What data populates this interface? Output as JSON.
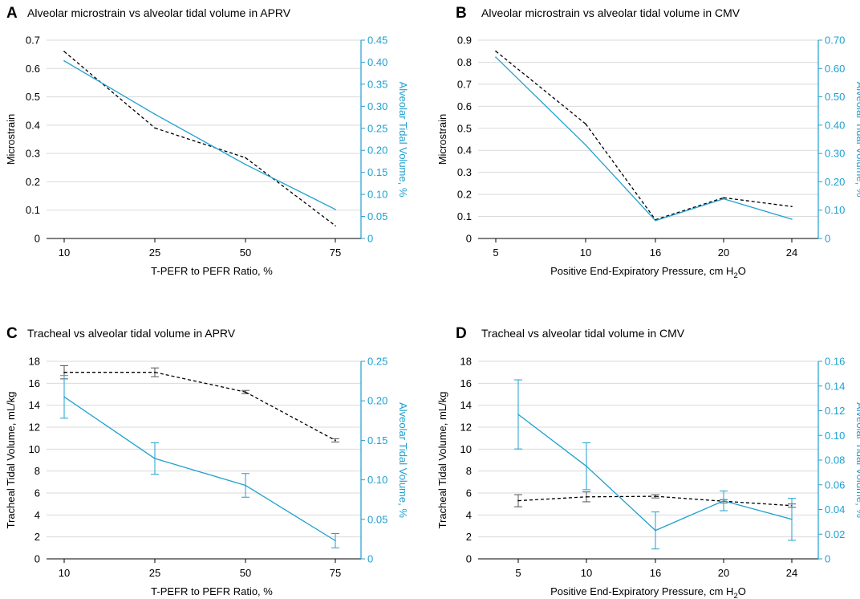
{
  "colors": {
    "primary": "#000000",
    "secondary": "#1fa0cf",
    "grid": "#dadada",
    "errorbar_black": "#555555"
  },
  "chart_data": [
    {
      "letter": "A",
      "title": "Alveolar microstrain vs alveolar tidal volume in APRV",
      "type": "line",
      "categories": [
        "10",
        "25",
        "50",
        "75"
      ],
      "xlabel": {
        "text": "T-PEFR to PEFR Ratio, %"
      },
      "ylabel": "Microstrain",
      "y2label": "Alveolar Tidal Volume, %",
      "ylim": [
        0,
        0.7
      ],
      "yticks": [
        "0",
        "0.1",
        "0.2",
        "0.3",
        "0.4",
        "0.5",
        "0.6",
        "0.7"
      ],
      "y2lim": [
        0,
        0.45
      ],
      "y2ticks": [
        "0",
        "0.05",
        "0.10",
        "0.15",
        "0.20",
        "0.25",
        "0.30",
        "0.35",
        "0.40",
        "0.45"
      ],
      "series": [
        {
          "name": "Microstrain",
          "axis": "left",
          "style": "dashed",
          "values": [
            0.66,
            0.39,
            0.285,
            0.045
          ]
        },
        {
          "name": "Alveolar Tidal Volume",
          "axis": "right",
          "style": "solid",
          "values": [
            0.403,
            0.282,
            0.168,
            0.066
          ]
        }
      ]
    },
    {
      "letter": "B",
      "title": "Alveolar microstrain vs alveolar tidal volume in CMV",
      "type": "line",
      "categories": [
        "5",
        "10",
        "16",
        "20",
        "24"
      ],
      "xlabel": {
        "text": "Positive End-Expiratory Pressure, cm H",
        "sub": "2",
        "tail": "O"
      },
      "ylabel": "Microstrain",
      "y2label": "Alveolar Tidal Volume, %",
      "ylim": [
        0,
        0.9
      ],
      "yticks": [
        "0",
        "0.1",
        "0.2",
        "0.3",
        "0.4",
        "0.5",
        "0.6",
        "0.7",
        "0.8",
        "0.9"
      ],
      "y2lim": [
        0,
        0.7
      ],
      "y2ticks": [
        "0",
        "0.10",
        "0.20",
        "0.30",
        "0.40",
        "0.50",
        "0.60",
        "0.70"
      ],
      "series": [
        {
          "name": "Microstrain",
          "axis": "left",
          "style": "dashed",
          "values": [
            0.85,
            0.52,
            0.085,
            0.185,
            0.145
          ]
        },
        {
          "name": "Alveolar Tidal Volume",
          "axis": "right",
          "style": "solid",
          "values": [
            0.64,
            0.33,
            0.063,
            0.14,
            0.068
          ]
        }
      ]
    },
    {
      "letter": "C",
      "title": "Tracheal vs alveolar tidal volume in APRV",
      "type": "line",
      "categories": [
        "10",
        "25",
        "50",
        "75"
      ],
      "xlabel": {
        "text": "T-PEFR to PEFR Ratio, %"
      },
      "ylabel": "Tracheal Tidal Volume, mL/kg",
      "y2label": "Alveolar Tidal Volume, %",
      "ylim": [
        0,
        18
      ],
      "yticks": [
        "0",
        "2",
        "4",
        "6",
        "8",
        "10",
        "12",
        "14",
        "16",
        "18"
      ],
      "y2lim": [
        0,
        0.25
      ],
      "y2ticks": [
        "0",
        "0.05",
        "0.10",
        "0.15",
        "0.20",
        "0.25"
      ],
      "series": [
        {
          "name": "Tracheal Tidal Volume",
          "axis": "left",
          "style": "dashed",
          "values": [
            17.0,
            17.0,
            15.2,
            10.8
          ],
          "err": [
            0.6,
            0.4,
            0.15,
            0.15
          ]
        },
        {
          "name": "Alveolar Tidal Volume",
          "axis": "right",
          "style": "solid",
          "values": [
            0.205,
            0.127,
            0.093,
            0.023
          ],
          "err": [
            0.027,
            0.02,
            0.015,
            0.009
          ]
        }
      ]
    },
    {
      "letter": "D",
      "title": "Tracheal vs alveolar tidal volume in CMV",
      "type": "line",
      "categories": [
        "5",
        "10",
        "16",
        "20",
        "24"
      ],
      "xlabel": {
        "text": "Positive End-Expiratory Pressure, cm H",
        "sub": "2",
        "tail": "O"
      },
      "ylabel": "Tracheal Tidal Volume, mL/kg",
      "y2label": "Alveolar Tidal Volume, %",
      "ylim": [
        0,
        18
      ],
      "yticks": [
        "0",
        "2",
        "4",
        "6",
        "8",
        "10",
        "12",
        "14",
        "16",
        "18"
      ],
      "y2lim": [
        0,
        0.16
      ],
      "y2ticks": [
        "0",
        "0.02",
        "0.04",
        "0.06",
        "0.08",
        "0.10",
        "0.12",
        "0.14",
        "0.16"
      ],
      "series": [
        {
          "name": "Tracheal Tidal Volume",
          "axis": "left",
          "style": "dashed",
          "values": [
            5.3,
            5.65,
            5.7,
            5.25,
            4.85
          ],
          "err": [
            0.55,
            0.45,
            0.15,
            0.15,
            0.15
          ]
        },
        {
          "name": "Alveolar Tidal Volume",
          "axis": "right",
          "style": "solid",
          "values": [
            0.117,
            0.075,
            0.023,
            0.047,
            0.032
          ],
          "err": [
            0.028,
            0.019,
            0.015,
            0.008,
            0.017
          ]
        }
      ]
    }
  ]
}
